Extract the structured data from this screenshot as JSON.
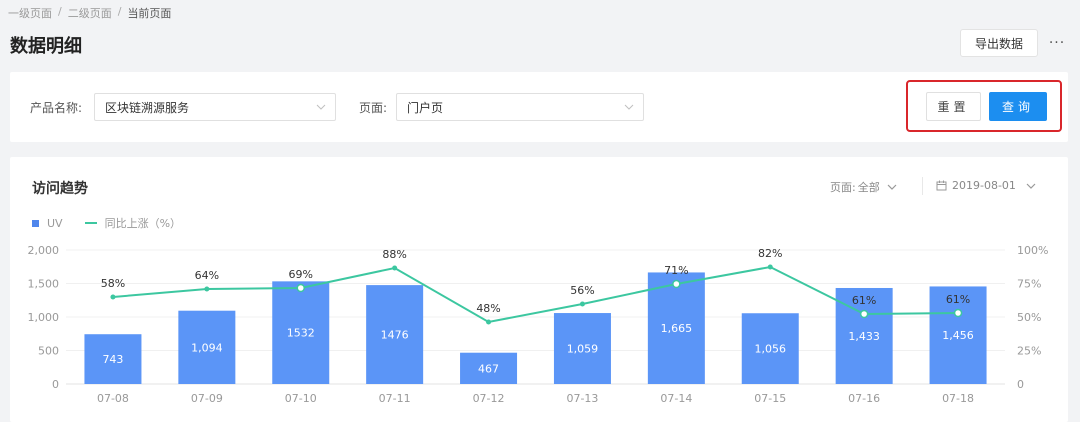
{
  "breadcrumb": {
    "items": [
      "一级页面",
      "二级页面",
      "当前页面"
    ],
    "separator": "/"
  },
  "header": {
    "title": "数据明细",
    "export_label": "导出数据",
    "more_label": "···"
  },
  "filters": {
    "product_label": "产品名称:",
    "product_value": "区块链溯源服务",
    "page_label": "页面:",
    "page_value": "门户页",
    "reset_label": "重置",
    "query_label": "查询"
  },
  "chart_card": {
    "title": "访问趋势",
    "page_filter_label": "页面:",
    "page_filter_value": "全部",
    "date_value": "2019-08-01",
    "legend": {
      "bar": "UV",
      "line": "同比上涨（%）"
    }
  },
  "colors": {
    "bar": "#5b95f7",
    "line": "#3cc7a0",
    "primary": "#1c8ef0",
    "highlight": "#d9262b"
  },
  "chart_data": {
    "type": "bar",
    "title": "访问趋势",
    "categories": [
      "07-08",
      "07-09",
      "07-10",
      "07-11",
      "07-12",
      "07-13",
      "07-14",
      "07-15",
      "07-16",
      "07-18"
    ],
    "series": [
      {
        "name": "UV",
        "type": "bar",
        "axis": "left",
        "values": [
          743,
          1094,
          1532,
          1476,
          467,
          1059,
          1665,
          1056,
          1433,
          1456
        ],
        "labels": [
          "743",
          "1,094",
          "1532",
          "1476",
          "467",
          "1,059",
          "1,665",
          "1,056",
          "1,433",
          "1,456"
        ]
      },
      {
        "name": "同比上涨（%）",
        "type": "line",
        "axis": "right",
        "values": [
          58,
          64,
          69,
          88,
          48,
          56,
          71,
          82,
          61,
          61
        ]
      }
    ],
    "y_left": {
      "ticks": [
        "0",
        "500",
        "1,000",
        "1,500",
        "2,000"
      ],
      "range": [
        0,
        2000
      ]
    },
    "y_right": {
      "ticks": [
        "0",
        "25%",
        "50%",
        "75%",
        "100%"
      ],
      "range": [
        0,
        100
      ]
    },
    "grid": true,
    "legend_position": "top-left"
  }
}
